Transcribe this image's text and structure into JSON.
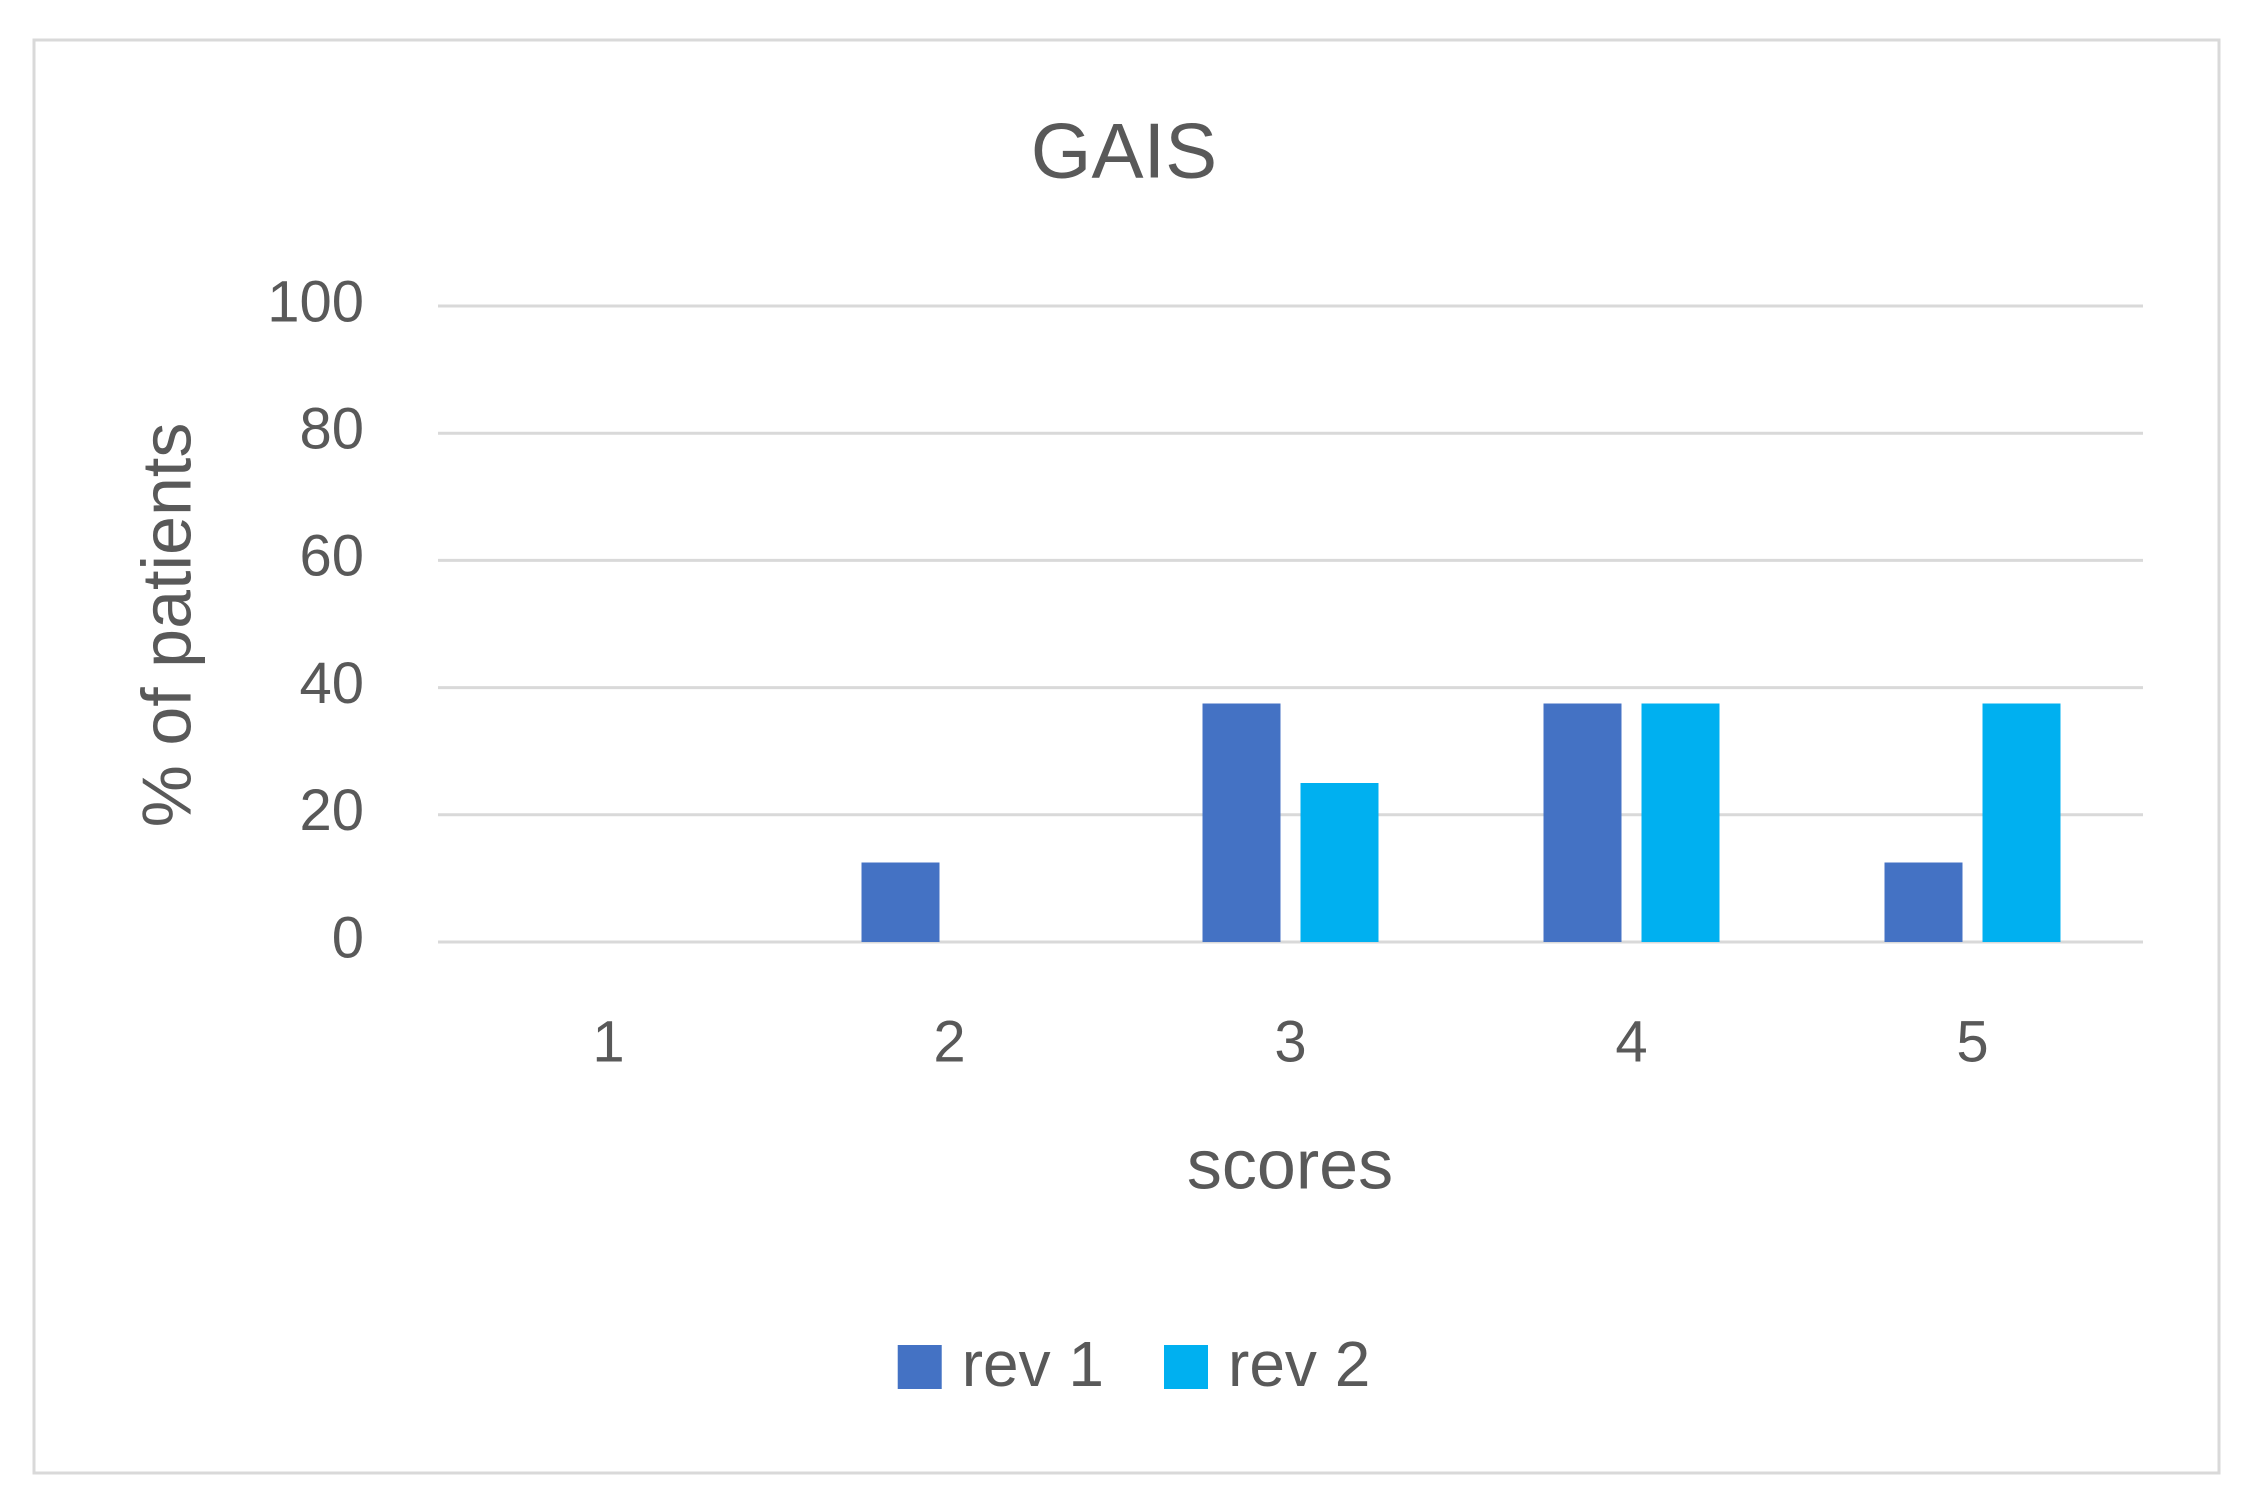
{
  "chart_data": {
    "type": "bar",
    "title": "GAIS",
    "x_label": "scores",
    "y_label": "% of patients",
    "categories": [
      "1",
      "2",
      "3",
      "4",
      "5"
    ],
    "series": [
      {
        "name": "rev 1",
        "color": "#4472c4",
        "values": [
          0,
          12.5,
          37.5,
          37.5,
          12.5
        ]
      },
      {
        "name": "rev 2",
        "color": "#00b0f0",
        "values": [
          0,
          0,
          25,
          37.5,
          37.5
        ]
      }
    ],
    "ylim": [
      0,
      100
    ],
    "yticks": [
      0,
      20,
      40,
      60,
      80,
      100
    ],
    "grid": true,
    "legend": "bottom"
  }
}
